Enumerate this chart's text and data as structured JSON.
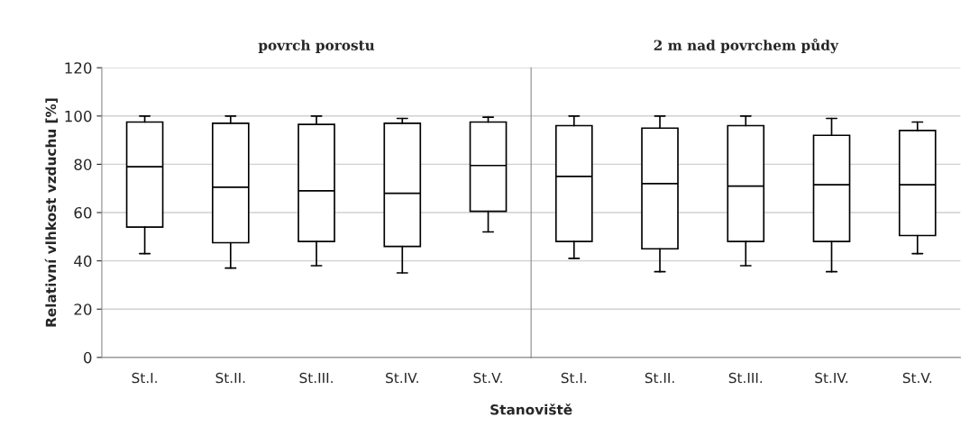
{
  "chart_data": [
    {
      "type": "box",
      "title": "povrch porostu",
      "ylabel": "Relativní vlhkost vzduchu [%]",
      "xlabel": "Stanoviště",
      "categories": [
        "St.I.",
        "St.II.",
        "St.III.",
        "St.IV.",
        "St.V."
      ],
      "ylim": [
        0,
        120
      ],
      "yticks": [
        0,
        20,
        40,
        60,
        80,
        100,
        120
      ],
      "grid": "y",
      "color": "#000000",
      "boxes": [
        {
          "low": 43,
          "q1": 54,
          "median": 79,
          "q3": 97.5,
          "high": 100
        },
        {
          "low": 37,
          "q1": 47.5,
          "median": 70.5,
          "q3": 97,
          "high": 100
        },
        {
          "low": 38,
          "q1": 48,
          "median": 69,
          "q3": 96.5,
          "high": 100
        },
        {
          "low": 35,
          "q1": 46,
          "median": 68,
          "q3": 97,
          "high": 99
        },
        {
          "low": 52,
          "q1": 60.5,
          "median": 79.5,
          "q3": 97.5,
          "high": 99.5
        }
      ]
    },
    {
      "type": "box",
      "title": "2 m nad povrchem půdy",
      "categories": [
        "St.I.",
        "St.II.",
        "St.III.",
        "St.IV.",
        "St.V."
      ],
      "ylim": [
        0,
        120
      ],
      "yticks": [
        0,
        20,
        40,
        60,
        80,
        100,
        120
      ],
      "tick_labels": "x",
      "grid": "y",
      "color": "#000000",
      "boxes": [
        {
          "low": 41,
          "q1": 48,
          "median": 75,
          "q3": 96,
          "high": 100
        },
        {
          "low": 35.5,
          "q1": 45,
          "median": 72,
          "q3": 95,
          "high": 100
        },
        {
          "low": 38,
          "q1": 48,
          "median": 71,
          "q3": 96,
          "high": 100
        },
        {
          "low": 35.5,
          "q1": 48,
          "median": 71.5,
          "q3": 92,
          "high": 99
        },
        {
          "low": 43,
          "q1": 50.5,
          "median": 71.5,
          "q3": 94,
          "high": 97.5
        }
      ]
    }
  ]
}
